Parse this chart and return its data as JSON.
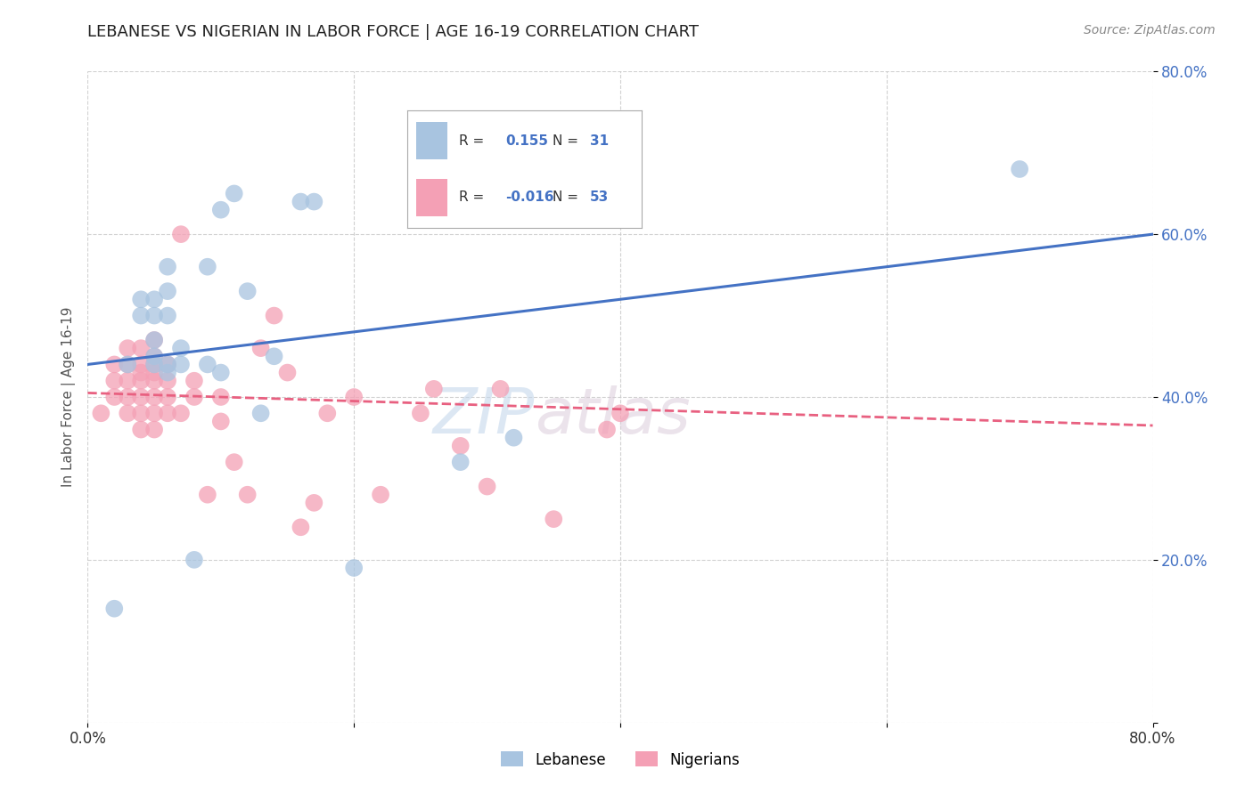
{
  "title": "LEBANESE VS NIGERIAN IN LABOR FORCE | AGE 16-19 CORRELATION CHART",
  "source": "Source: ZipAtlas.com",
  "ylabel": "In Labor Force | Age 16-19",
  "xlim": [
    0.0,
    0.8
  ],
  "ylim": [
    0.0,
    0.8
  ],
  "xticks": [
    0.0,
    0.2,
    0.4,
    0.6,
    0.8
  ],
  "yticks": [
    0.0,
    0.2,
    0.4,
    0.6,
    0.8
  ],
  "xticklabels": [
    "0.0%",
    "",
    "",
    "",
    "80.0%"
  ],
  "yticklabels": [
    "",
    "20.0%",
    "40.0%",
    "60.0%",
    "80.0%"
  ],
  "legend_R_lebanese": "0.155",
  "legend_N_lebanese": "31",
  "legend_R_nigerians": "-0.016",
  "legend_N_nigerians": "53",
  "lebanese_color": "#a8c4e0",
  "nigerian_color": "#f4a0b5",
  "lebanese_line_color": "#4472c4",
  "nigerian_line_color": "#e86080",
  "watermark_ZIP": "ZIP",
  "watermark_atlas": "atlas",
  "lebanese_x": [
    0.02,
    0.03,
    0.04,
    0.04,
    0.05,
    0.05,
    0.05,
    0.05,
    0.05,
    0.06,
    0.06,
    0.06,
    0.06,
    0.06,
    0.07,
    0.07,
    0.08,
    0.09,
    0.09,
    0.1,
    0.1,
    0.11,
    0.12,
    0.13,
    0.14,
    0.16,
    0.17,
    0.2,
    0.28,
    0.32,
    0.7
  ],
  "lebanese_y": [
    0.14,
    0.44,
    0.5,
    0.52,
    0.44,
    0.45,
    0.47,
    0.5,
    0.52,
    0.43,
    0.44,
    0.5,
    0.53,
    0.56,
    0.44,
    0.46,
    0.2,
    0.44,
    0.56,
    0.43,
    0.63,
    0.65,
    0.53,
    0.38,
    0.45,
    0.64,
    0.64,
    0.19,
    0.32,
    0.35,
    0.68
  ],
  "nigerian_x": [
    0.01,
    0.02,
    0.02,
    0.02,
    0.03,
    0.03,
    0.03,
    0.03,
    0.03,
    0.04,
    0.04,
    0.04,
    0.04,
    0.04,
    0.04,
    0.04,
    0.05,
    0.05,
    0.05,
    0.05,
    0.05,
    0.05,
    0.05,
    0.05,
    0.06,
    0.06,
    0.06,
    0.06,
    0.07,
    0.07,
    0.08,
    0.08,
    0.09,
    0.1,
    0.1,
    0.11,
    0.12,
    0.13,
    0.14,
    0.15,
    0.16,
    0.17,
    0.18,
    0.2,
    0.22,
    0.25,
    0.26,
    0.28,
    0.3,
    0.31,
    0.35,
    0.39,
    0.4
  ],
  "nigerian_y": [
    0.38,
    0.4,
    0.42,
    0.44,
    0.38,
    0.4,
    0.42,
    0.44,
    0.46,
    0.36,
    0.38,
    0.4,
    0.42,
    0.43,
    0.44,
    0.46,
    0.36,
    0.38,
    0.4,
    0.42,
    0.43,
    0.44,
    0.45,
    0.47,
    0.38,
    0.4,
    0.42,
    0.44,
    0.38,
    0.6,
    0.4,
    0.42,
    0.28,
    0.37,
    0.4,
    0.32,
    0.28,
    0.46,
    0.5,
    0.43,
    0.24,
    0.27,
    0.38,
    0.4,
    0.28,
    0.38,
    0.41,
    0.34,
    0.29,
    0.41,
    0.25,
    0.36,
    0.38
  ],
  "leb_line_x0": 0.0,
  "leb_line_y0": 0.44,
  "leb_line_x1": 0.8,
  "leb_line_y1": 0.6,
  "nig_line_x0": 0.0,
  "nig_line_y0": 0.405,
  "nig_line_x1": 0.8,
  "nig_line_y1": 0.365
}
